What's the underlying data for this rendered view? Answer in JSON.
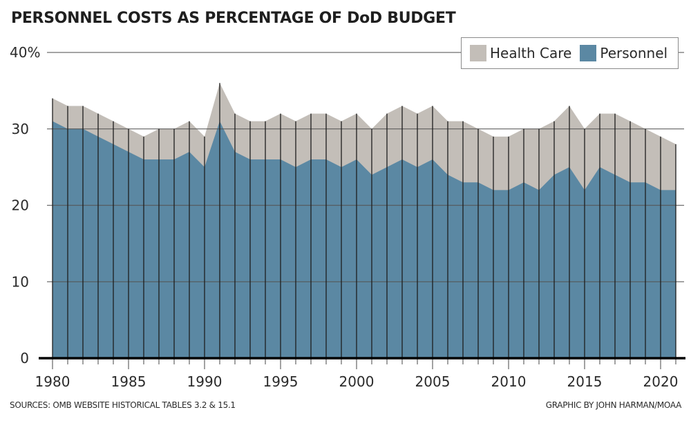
{
  "chart_data": {
    "type": "area",
    "stacked": false,
    "title": "PERSONNEL COSTS AS PERCENTAGE OF DoD BUDGET",
    "xlabel": "",
    "ylabel": "",
    "x": [
      1980,
      1981,
      1982,
      1983,
      1984,
      1985,
      1986,
      1987,
      1988,
      1989,
      1990,
      1991,
      1992,
      1993,
      1994,
      1995,
      1996,
      1997,
      1998,
      1999,
      2000,
      2001,
      2002,
      2003,
      2004,
      2005,
      2006,
      2007,
      2008,
      2009,
      2010,
      2011,
      2012,
      2013,
      2014,
      2015,
      2016,
      2017,
      2018,
      2019,
      2020,
      2021
    ],
    "series": [
      {
        "name": "Health Care",
        "color": "#c3beb8",
        "note": "top of gray area = personnel + health care",
        "values": [
          34,
          33,
          33,
          32,
          31,
          30,
          29,
          30,
          30,
          31,
          29,
          36,
          32,
          31,
          31,
          32,
          31,
          32,
          32,
          31,
          32,
          30,
          32,
          33,
          32,
          33,
          31,
          31,
          30,
          29,
          29,
          30,
          30,
          31,
          33,
          30,
          32,
          32,
          31,
          30,
          29,
          28
        ]
      },
      {
        "name": "Personnel",
        "color": "#5b88a3",
        "values": [
          31,
          30,
          30,
          29,
          28,
          27,
          26,
          26,
          26,
          27,
          25,
          31,
          27,
          26,
          26,
          26,
          25,
          26,
          26,
          25,
          26,
          24,
          25,
          26,
          25,
          26,
          24,
          23,
          23,
          22,
          22,
          23,
          22,
          24,
          25,
          22,
          25,
          24,
          23,
          23,
          22,
          22
        ]
      }
    ],
    "yticks": [
      0,
      10,
      20,
      30,
      40
    ],
    "ytick_labels": [
      "0",
      "10",
      "20",
      "30",
      "40%"
    ],
    "xticks": [
      1980,
      1985,
      1990,
      1995,
      2000,
      2005,
      2010,
      2015,
      2020
    ],
    "xtick_labels": [
      "1980",
      "1985",
      "1990",
      "1995",
      "2000",
      "2005",
      "2010",
      "2015",
      "2020"
    ],
    "ylim": [
      0,
      40
    ],
    "xlim": [
      1980,
      2021
    ],
    "grid": true,
    "legend": "top-right"
  },
  "legend": {
    "items": [
      {
        "label": "Health Care",
        "color": "#c3beb8"
      },
      {
        "label": "Personnel",
        "color": "#5b88a3"
      }
    ]
  },
  "footer": {
    "source": "SOURCES: OMB WEBSITE HISTORICAL TABLES 3.2 & 15.1",
    "credit": "GRAPHIC BY JOHN HARMAN/MOAA"
  }
}
